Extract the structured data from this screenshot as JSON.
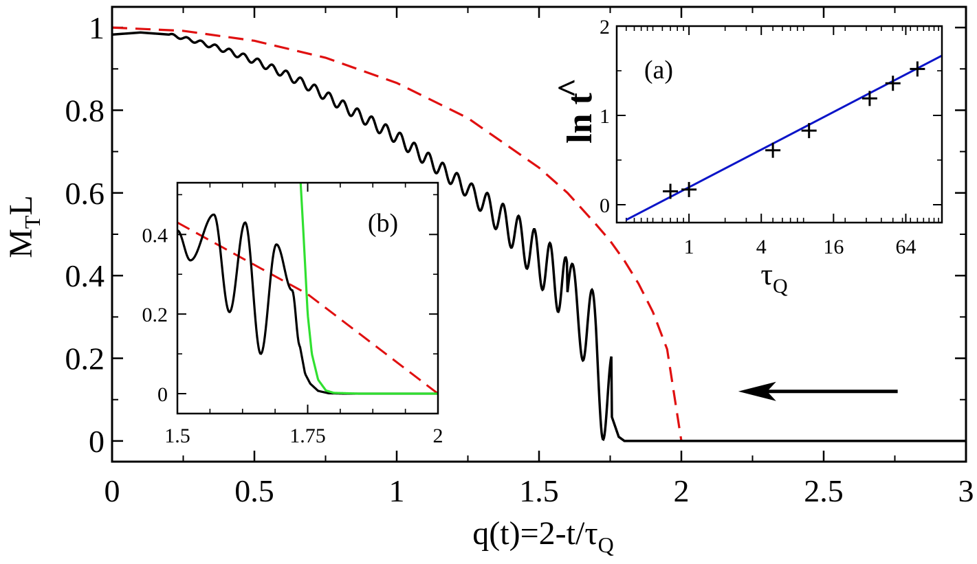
{
  "chart_data": [
    {
      "id": "main",
      "type": "line",
      "xlabel": "q(t)=2-t/τ",
      "xlabel_sub": "Q",
      "ylabel": "M",
      "ylabel_sub": "T",
      "ylabel_tail": "L",
      "xlim": [
        0,
        3
      ],
      "ylim": [
        -0.05,
        1.05
      ],
      "xticks": [
        0,
        0.5,
        1,
        1.5,
        2,
        2.5,
        3
      ],
      "xtick_labels": [
        "0",
        "0.5",
        "1",
        "1.5",
        "2",
        "2.5",
        "3"
      ],
      "yticks": [
        0,
        0.2,
        0.4,
        0.6,
        0.8,
        1
      ],
      "ytick_labels": [
        "0",
        "0.2",
        "0.4",
        "0.6",
        "0.8",
        "1"
      ],
      "series": [
        {
          "style": "solid",
          "color": "#000000",
          "points": [
            [
              0,
              0.983
            ],
            [
              0.1,
              0.988
            ],
            [
              0.2,
              0.983
            ],
            [
              0.3,
              0.966
            ],
            [
              0.4,
              0.945
            ],
            [
              0.5,
              0.92
            ],
            [
              0.6,
              0.89
            ],
            [
              0.7,
              0.855
            ],
            [
              0.8,
              0.815
            ],
            [
              0.9,
              0.775
            ],
            [
              1.0,
              0.735
            ],
            [
              1.1,
              0.685
            ],
            [
              1.2,
              0.635
            ],
            [
              1.3,
              0.58
            ],
            [
              1.4,
              0.515
            ],
            [
              1.5,
              0.44
            ],
            [
              1.6,
              0.36
            ],
            [
              1.67,
              0.28
            ],
            [
              1.7,
              0.22
            ],
            [
              1.72,
              0.15
            ],
            [
              1.75,
              0.07
            ],
            [
              1.78,
              0.01
            ],
            [
              1.8,
              0.0
            ],
            [
              3.0,
              0.0
            ]
          ],
          "oscillations": [
            {
              "x_start": 0.2,
              "x_end": 1.25,
              "period": 0.05,
              "amp_start": 0.003,
              "amp_end": 0.02
            },
            {
              "x_start": 1.25,
              "x_end": 1.6,
              "period": 0.055,
              "amp_start": 0.02,
              "amp_end": 0.08
            },
            {
              "x_start": 1.6,
              "x_end": 1.755,
              "period": 0.07,
              "amp_start": 0.08,
              "amp_end": 0.15
            }
          ]
        },
        {
          "style": "dashed",
          "color": "#e01010",
          "points": [
            [
              0,
              1.0
            ],
            [
              0.25,
              0.992
            ],
            [
              0.5,
              0.968
            ],
            [
              0.75,
              0.927
            ],
            [
              1.0,
              0.866
            ],
            [
              1.25,
              0.781
            ],
            [
              1.5,
              0.661
            ],
            [
              1.6,
              0.6
            ],
            [
              1.7,
              0.524
            ],
            [
              1.75,
              0.484
            ],
            [
              1.8,
              0.436
            ],
            [
              1.85,
              0.38
            ],
            [
              1.9,
              0.312
            ],
            [
              1.95,
              0.222
            ],
            [
              2.0,
              0.0
            ]
          ]
        }
      ],
      "annotations": [
        {
          "type": "arrow",
          "from": [
            2.76,
            0.12
          ],
          "to": [
            2.2,
            0.12
          ],
          "direction": "left"
        }
      ]
    },
    {
      "id": "inset-a",
      "type": "scatter",
      "panel_label": "(a)",
      "xlabel": "τ",
      "xlabel_sub": "Q",
      "ylabel": "ln t",
      "ylabel_accent": "^",
      "x_scale": "log2",
      "xlim": [
        0.25,
        128
      ],
      "ylim": [
        -0.2,
        2
      ],
      "xticks": [
        1,
        4,
        16,
        64
      ],
      "xtick_labels": [
        "1",
        "4",
        "16",
        "64"
      ],
      "yticks": [
        0,
        1,
        2
      ],
      "ytick_labels": [
        "0",
        "1",
        "2"
      ],
      "series": [
        {
          "type": "scatter",
          "marker": "+",
          "color": "#000000",
          "x": [
            0.7,
            1,
            5,
            10,
            32,
            50,
            80
          ],
          "y": [
            0.15,
            0.17,
            0.61,
            0.83,
            1.19,
            1.36,
            1.52
          ]
        },
        {
          "type": "line",
          "color": "#0a14c8",
          "x": [
            0.3,
            128
          ],
          "y": [
            -0.17,
            1.67
          ]
        }
      ]
    },
    {
      "id": "inset-b",
      "type": "line",
      "panel_label": "(b)",
      "xlim": [
        1.5,
        2
      ],
      "ylim": [
        -0.05,
        0.53
      ],
      "xticks": [
        1.5,
        1.75,
        2
      ],
      "xtick_labels": [
        "1.5",
        "1.75",
        "2"
      ],
      "yticks": [
        0,
        0.2,
        0.4
      ],
      "ytick_labels": [
        "0",
        "0.2",
        "0.4"
      ],
      "series": [
        {
          "style": "dashed",
          "color": "#e01010",
          "x": [
            1.5,
            1.75,
            2.0
          ],
          "y": [
            0.43,
            0.25,
            0.0
          ]
        },
        {
          "style": "solid",
          "color": "#30e030",
          "x": [
            1.7365,
            1.742,
            1.75,
            1.758,
            1.77,
            1.785,
            1.8,
            1.85,
            2.0
          ],
          "y": [
            0.53,
            0.4,
            0.2,
            0.1,
            0.035,
            0.008,
            0.002,
            0.0,
            0.0
          ]
        },
        {
          "style": "solid",
          "color": "#000000",
          "x": [
            1.5,
            1.525,
            1.57,
            1.6,
            1.63,
            1.66,
            1.69,
            1.72,
            1.735,
            1.745,
            1.755,
            1.77,
            1.79,
            1.82,
            2.0
          ],
          "y": [
            0.41,
            0.335,
            0.45,
            0.205,
            0.43,
            0.1,
            0.375,
            0.26,
            0.12,
            0.05,
            0.025,
            0.007,
            0.001,
            0.0,
            0.0
          ]
        }
      ]
    }
  ]
}
